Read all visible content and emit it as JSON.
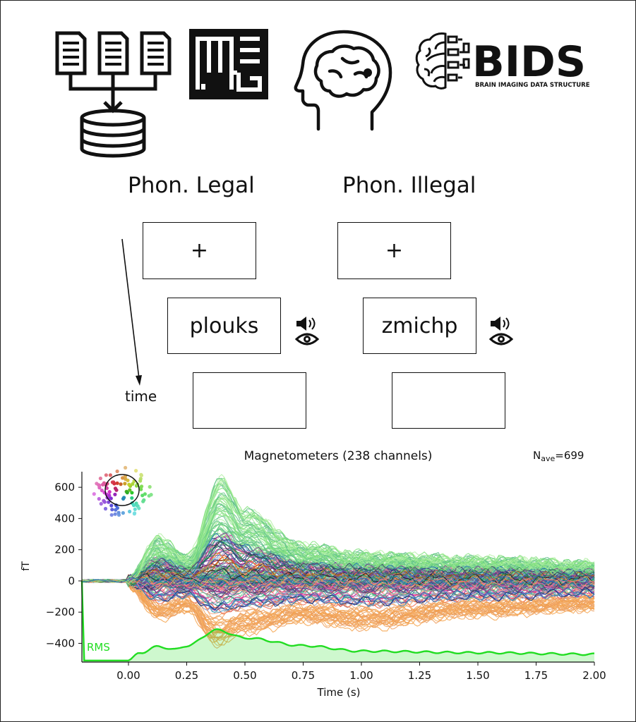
{
  "top_icons": {
    "files_to_db": "files-to-database-icon",
    "meg_logo": "MEG",
    "head": "head-brain-icon",
    "bids_title": "BIDS",
    "bids_subtitle": "BRAIN IMAGING DATA STRUCTURE"
  },
  "conditions": {
    "left": {
      "label": "Phon. Legal",
      "fixation": "+",
      "word": "plouks"
    },
    "right": {
      "label": "Phon. Illegal",
      "fixation": "+",
      "word": "zmichp"
    }
  },
  "time_label": "time",
  "stimulus_icons": [
    "speaker-icon",
    "eye-icon"
  ],
  "chart_data": {
    "type": "line",
    "title": "Magnetometers (238 channels)",
    "nave": "N",
    "nave_sub": "ave",
    "nave_value": "=699",
    "xlabel": "Time (s)",
    "ylabel": "fT",
    "xlim": [
      -0.2,
      2.0
    ],
    "ylim": [
      -520,
      700
    ],
    "xticks": [
      0.0,
      0.25,
      0.5,
      0.75,
      1.0,
      1.25,
      1.5,
      1.75,
      2.0
    ],
    "xtick_labels": [
      "0.00",
      "0.25",
      "0.50",
      "0.75",
      "1.00",
      "1.25",
      "1.50",
      "1.75",
      "2.00"
    ],
    "yticks": [
      600,
      400,
      200,
      0,
      -200,
      -400
    ],
    "ytick_labels": [
      "600",
      "400",
      "200",
      "0",
      "−200",
      "−400"
    ],
    "rms_label": "RMS",
    "rms_color": "#22dd22",
    "channel_count": 238,
    "envelope_max": [
      [
        0.0,
        10
      ],
      [
        0.13,
        280
      ],
      [
        0.25,
        150
      ],
      [
        0.4,
        660
      ],
      [
        0.5,
        450
      ],
      [
        0.75,
        230
      ],
      [
        1.0,
        170
      ],
      [
        1.5,
        140
      ],
      [
        2.0,
        110
      ]
    ],
    "envelope_min": [
      [
        0.0,
        -30
      ],
      [
        0.13,
        -240
      ],
      [
        0.25,
        -190
      ],
      [
        0.38,
        -410
      ],
      [
        0.5,
        -330
      ],
      [
        0.75,
        -260
      ],
      [
        1.0,
        -300
      ],
      [
        1.5,
        -220
      ],
      [
        2.0,
        -180
      ]
    ],
    "rms": [
      [
        -0.2,
        -510
      ],
      [
        0.0,
        -510
      ],
      [
        0.05,
        -460
      ],
      [
        0.13,
        -420
      ],
      [
        0.2,
        -440
      ],
      [
        0.25,
        -415
      ],
      [
        0.38,
        -315
      ],
      [
        0.5,
        -365
      ],
      [
        0.75,
        -415
      ],
      [
        1.0,
        -450
      ],
      [
        1.5,
        -460
      ],
      [
        2.0,
        -470
      ]
    ]
  }
}
